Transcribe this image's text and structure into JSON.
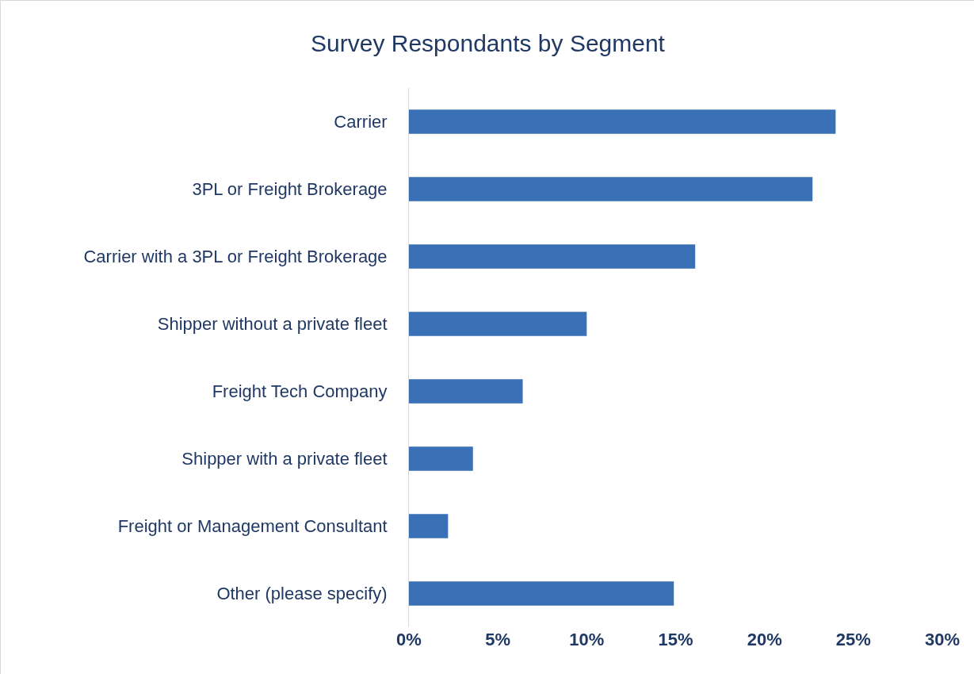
{
  "chart_data": {
    "type": "bar",
    "orientation": "horizontal",
    "title": "Survey Respondants by Segment",
    "categories": [
      "Carrier",
      "3PL or Freight Brokerage",
      "Carrier with a 3PL or Freight Brokerage",
      "Shipper without a private fleet",
      "Freight Tech Company",
      "Shipper with a private fleet",
      "Freight or Management Consultant",
      "Other (please specify)"
    ],
    "values": [
      24.0,
      22.7,
      16.1,
      10.0,
      6.4,
      3.6,
      2.2,
      14.9
    ],
    "color": "#3a70b5",
    "xlim": [
      0,
      30
    ],
    "xticks": [
      {
        "value": 0,
        "label": "0%"
      },
      {
        "value": 5,
        "label": "5%"
      },
      {
        "value": 10,
        "label": "10%"
      },
      {
        "value": 15,
        "label": "15%"
      },
      {
        "value": 20,
        "label": "20%"
      },
      {
        "value": 25,
        "label": "25%"
      },
      {
        "value": 30,
        "label": "30%"
      }
    ],
    "grid": false
  }
}
